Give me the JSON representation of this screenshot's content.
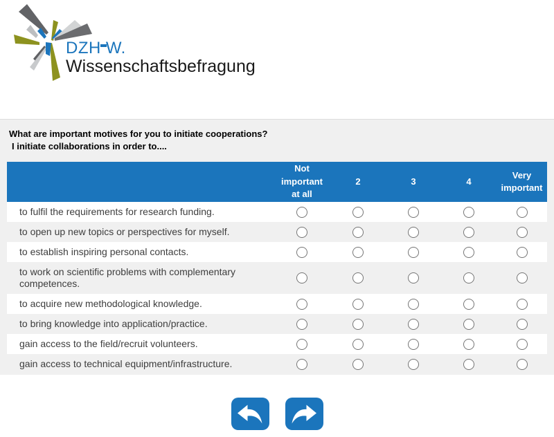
{
  "logo": {
    "title_left": "DZH",
    "title_right": "W.",
    "subtitle": "Wissenschaftsbefragung"
  },
  "question": {
    "line1": "What are important motives for you to initiate cooperations?",
    "line2": "I initiate collaborations in order to...."
  },
  "table": {
    "columns": [
      "Not\nimportant\nat all",
      "2",
      "3",
      "4",
      "Very\nimportant"
    ],
    "rows": [
      "to fulfil the requirements for research funding.",
      "to open up new topics or perspectives for myself.",
      "to establish inspiring personal contacts.",
      "to work on scientific problems with complementary competences.",
      "to acquire new methodological knowledge.",
      "to bring knowledge into application/practice.",
      "gain access to the field/recruit volunteers.",
      "gain access to technical equipment/infrastructure."
    ]
  },
  "buttons": {
    "back_icon": "arrow-back-icon",
    "forward_icon": "arrow-forward-icon"
  },
  "colors": {
    "accent": "#1b75bc",
    "panel": "#f0f0f0",
    "radio_border": "#757575"
  }
}
